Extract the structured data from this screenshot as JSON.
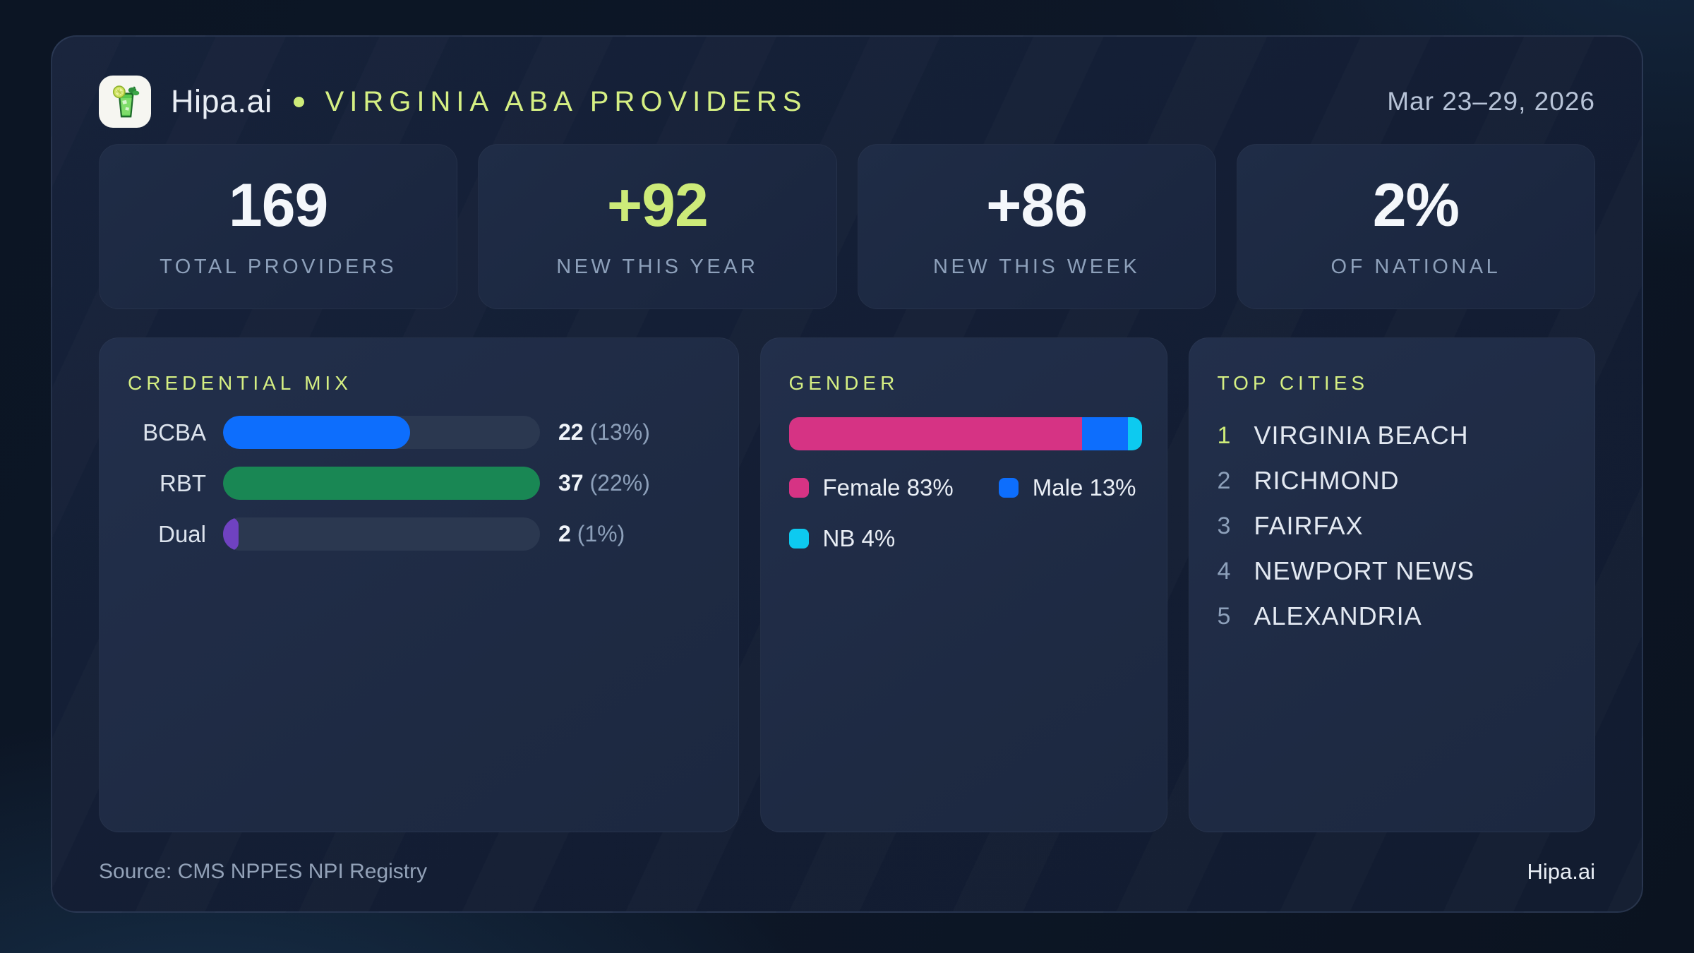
{
  "header": {
    "brand": "Hipa.ai",
    "title": "VIRGINIA ABA PROVIDERS",
    "date_range": "Mar 23–29, 2026",
    "accent_color": "#cdeb79",
    "logo_icon": "mojito-glass-icon"
  },
  "stats": [
    {
      "value": "169",
      "label": "TOTAL PROVIDERS"
    },
    {
      "value": "+92",
      "label": "NEW THIS YEAR"
    },
    {
      "value": "+86",
      "label": "NEW THIS WEEK"
    },
    {
      "value": "2%",
      "label": "OF NATIONAL"
    }
  ],
  "credential_mix": {
    "title": "CREDENTIAL MIX",
    "rows": [
      {
        "label": "BCBA",
        "count": "22",
        "pct_text": "(13%)",
        "fill_pct": 59,
        "color": "#0d6efd"
      },
      {
        "label": "RBT",
        "count": "37",
        "pct_text": "(22%)",
        "fill_pct": 100,
        "color": "#198754"
      },
      {
        "label": "Dual",
        "count": "2",
        "pct_text": "(1%)",
        "fill_pct": 5,
        "color": "#6f42c1"
      }
    ]
  },
  "gender": {
    "title": "GENDER",
    "segments": [
      {
        "label": "Female 83%",
        "pct": 83,
        "color": "#d63384"
      },
      {
        "label": "Male 13%",
        "pct": 13,
        "color": "#0d6efd"
      },
      {
        "label": "NB 4%",
        "pct": 4,
        "color": "#0dcaf0"
      }
    ]
  },
  "top_cities": {
    "title": "TOP CITIES",
    "items": [
      {
        "rank": "1",
        "city": "VIRGINIA BEACH"
      },
      {
        "rank": "2",
        "city": "RICHMOND"
      },
      {
        "rank": "3",
        "city": "FAIRFAX"
      },
      {
        "rank": "4",
        "city": "NEWPORT NEWS"
      },
      {
        "rank": "5",
        "city": "ALEXANDRIA"
      }
    ]
  },
  "footer": {
    "source": "Source: CMS NPPES NPI Registry",
    "brand": "Hipa.ai"
  },
  "chart_data": [
    {
      "type": "bar",
      "orientation": "horizontal",
      "title": "CREDENTIAL MIX",
      "categories": [
        "BCBA",
        "RBT",
        "Dual"
      ],
      "values": [
        22,
        37,
        2
      ],
      "percent_of_total": [
        13,
        22,
        1
      ],
      "data_labels": [
        "22 (13%)",
        "37 (22%)",
        "2 (1%)"
      ],
      "colors": [
        "#0d6efd",
        "#198754",
        "#6f42c1"
      ],
      "track_color": "#2b3850",
      "grid": false,
      "legend_position": "none"
    },
    {
      "type": "bar",
      "subtype": "stacked-horizontal-100pct",
      "title": "GENDER",
      "series": [
        {
          "name": "Female",
          "values": [
            83
          ],
          "color": "#d63384"
        },
        {
          "name": "Male",
          "values": [
            13
          ],
          "color": "#0d6efd"
        },
        {
          "name": "NB",
          "values": [
            4
          ],
          "color": "#0dcaf0"
        }
      ],
      "unit": "%",
      "xlim": [
        0,
        100
      ],
      "grid": false,
      "legend_position": "below"
    },
    {
      "type": "table",
      "title": "TOP CITIES",
      "categories": [
        "1",
        "2",
        "3",
        "4",
        "5"
      ],
      "values_text": [
        "VIRGINIA BEACH",
        "RICHMOND",
        "FAIRFAX",
        "NEWPORT NEWS",
        "ALEXANDRIA"
      ]
    }
  ]
}
